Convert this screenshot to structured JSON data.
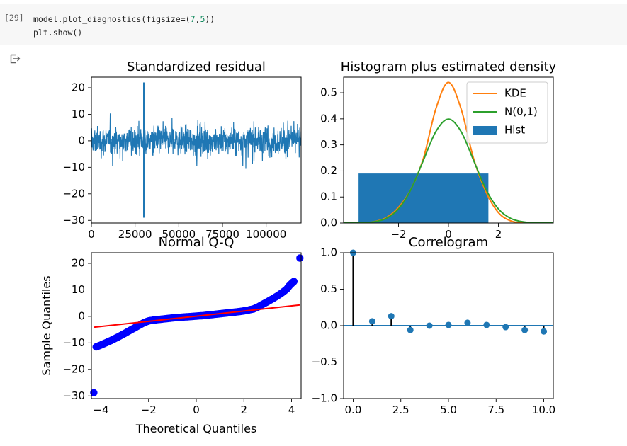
{
  "cell": {
    "prompt": "[29]",
    "line1_pre": "model.plot_diagnostics(figsize=(",
    "line1_n1": "7",
    "line1_sep": ",",
    "line1_n2": "5",
    "line1_post": "))",
    "line2": "plt.show()"
  },
  "output_icon": "output-arrow-icon",
  "colors": {
    "blue": "#1f77b4",
    "orange": "#ff7f0e",
    "green": "#2ca02c",
    "red": "#ff0000",
    "qq_points": "#0000ff",
    "cell_bg": "#f7f7f7"
  },
  "chart_data": [
    {
      "type": "line",
      "title": "Standardized residual",
      "xlim": [
        0,
        120000
      ],
      "ylim": [
        -31,
        24
      ],
      "xticks": [
        0,
        25000,
        50000,
        75000,
        100000
      ],
      "xtick_labels": [
        "0",
        "25000",
        "50000",
        "75000",
        "100000"
      ],
      "yticks": [
        20,
        10,
        0,
        -10,
        -20,
        -30
      ],
      "ytick_labels": [
        "20",
        "10",
        "0",
        "−10",
        "−20",
        "−30"
      ],
      "n_points": 120000,
      "typical_range": [
        -8,
        8
      ],
      "extremes": [
        {
          "x": 30000,
          "y": 22
        },
        {
          "x": 30000,
          "y": -29
        }
      ]
    },
    {
      "type": "bar",
      "title": "Histogram plus estimated density",
      "xlim": [
        -4.2,
        4.2
      ],
      "ylim": [
        0,
        0.56
      ],
      "xticks": [
        -2,
        0,
        2
      ],
      "xtick_labels": [
        "−2",
        "0",
        "2"
      ],
      "yticks": [
        0.0,
        0.1,
        0.2,
        0.3,
        0.4,
        0.5
      ],
      "ytick_labels": [
        "0.0",
        "0.1",
        "0.2",
        "0.3",
        "0.4",
        "0.5"
      ],
      "histogram": {
        "bins": [
          [
            -3.6,
            1.6
          ]
        ],
        "heights": [
          0.19
        ]
      },
      "kde": {
        "x": [
          -4.2,
          -3.5,
          -3.0,
          -2.5,
          -2.0,
          -1.5,
          -1.0,
          -0.5,
          0.0,
          0.5,
          1.0,
          1.5,
          2.0,
          2.5,
          3.0,
          3.5,
          4.2
        ],
        "y": [
          0.0,
          0.0,
          0.005,
          0.02,
          0.06,
          0.13,
          0.25,
          0.44,
          0.54,
          0.44,
          0.25,
          0.12,
          0.04,
          0.008,
          0.0,
          0.0,
          0.0
        ]
      },
      "normal": {
        "x": [
          -4.2,
          -3.5,
          -3.0,
          -2.5,
          -2.0,
          -1.5,
          -1.0,
          -0.5,
          0.0,
          0.5,
          1.0,
          1.5,
          2.0,
          2.5,
          3.0,
          3.5,
          4.2
        ],
        "y": [
          0.0001,
          0.0009,
          0.0044,
          0.0175,
          0.054,
          0.1295,
          0.242,
          0.352,
          0.399,
          0.352,
          0.242,
          0.1295,
          0.054,
          0.0175,
          0.0044,
          0.0009,
          0.0001
        ]
      },
      "legend": [
        "KDE",
        "N(0,1)",
        "Hist"
      ],
      "legend_placement": "top-right"
    },
    {
      "type": "scatter",
      "title": "Normal Q-Q",
      "xlabel": "Theoretical Quantiles",
      "ylabel": "Sample Quantiles",
      "xlim": [
        -4.4,
        4.4
      ],
      "ylim": [
        -31,
        24
      ],
      "xticks": [
        -4,
        -2,
        0,
        2,
        4
      ],
      "xtick_labels": [
        "−4",
        "−2",
        "0",
        "2",
        "4"
      ],
      "yticks": [
        20,
        10,
        0,
        -10,
        -20,
        -30
      ],
      "ytick_labels": [
        "20",
        "10",
        "0",
        "−10",
        "−20",
        "−30"
      ],
      "points": {
        "x": [
          -4.3,
          -4.2,
          -4.0,
          -3.8,
          -3.6,
          -3.4,
          -3.2,
          -3.0,
          -2.8,
          -2.6,
          -2.4,
          -2.2,
          -2.0,
          -1.8,
          -1.5,
          -1.2,
          -0.9,
          -0.6,
          -0.3,
          0.0,
          0.3,
          0.6,
          0.9,
          1.2,
          1.5,
          1.8,
          2.1,
          2.4,
          2.6,
          2.8,
          3.0,
          3.2,
          3.4,
          3.6,
          3.8,
          3.9,
          4.0,
          4.1,
          4.35
        ],
        "y": [
          -28.8,
          -11.5,
          -10.8,
          -10.0,
          -9.2,
          -8.3,
          -7.4,
          -6.4,
          -5.4,
          -4.4,
          -3.4,
          -2.4,
          -1.7,
          -1.4,
          -1.1,
          -0.8,
          -0.5,
          -0.3,
          -0.1,
          0.1,
          0.3,
          0.6,
          0.9,
          1.2,
          1.5,
          1.8,
          2.2,
          2.8,
          3.6,
          4.6,
          5.6,
          6.6,
          7.7,
          8.9,
          10.3,
          11.5,
          12.4,
          13.2,
          22
        ]
      },
      "reference_line": {
        "x": [
          -4.3,
          4.35
        ],
        "y": [
          -4.1,
          4.3
        ]
      }
    },
    {
      "type": "stem",
      "title": "Correlogram",
      "xlim": [
        -0.5,
        10.5
      ],
      "ylim": [
        -1.0,
        1.0
      ],
      "xticks": [
        0.0,
        2.5,
        5.0,
        7.5,
        10.0
      ],
      "xtick_labels": [
        "0.0",
        "2.5",
        "5.0",
        "7.5",
        "10.0"
      ],
      "yticks": [
        1.0,
        0.5,
        0.0,
        -0.5,
        -1.0
      ],
      "ytick_labels": [
        "1.0",
        "0.5",
        "0.0",
        "−0.5",
        "−1.0"
      ],
      "lags": [
        0,
        1,
        2,
        3,
        4,
        5,
        6,
        7,
        8,
        9,
        10
      ],
      "values": [
        1.0,
        0.06,
        0.13,
        -0.06,
        0.0,
        0.01,
        0.04,
        0.01,
        -0.02,
        -0.06,
        -0.08
      ]
    }
  ]
}
